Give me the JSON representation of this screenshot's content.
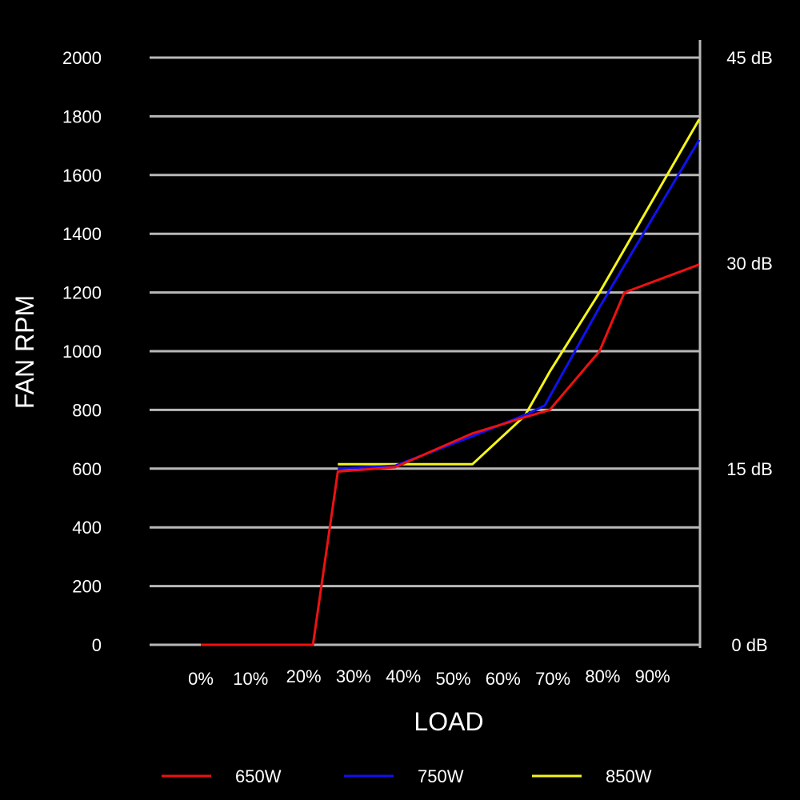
{
  "chart_data": {
    "type": "line",
    "title": "",
    "xlabel": "LOAD",
    "ylabel": "FAN RPM",
    "x_tick_labels": [
      "0%",
      "10%",
      "20%",
      "30%",
      "40%",
      "50%",
      "60%",
      "70%",
      "80%",
      "90%"
    ],
    "y_ticks": [
      0,
      200,
      400,
      600,
      800,
      1000,
      1200,
      1400,
      1600,
      1800,
      2000
    ],
    "ylim": [
      0,
      2000
    ],
    "xlim": [
      -10,
      100
    ],
    "secondary_y_labels": [
      {
        "label": "0 dB",
        "rpm": 0
      },
      {
        "label": "15 dB",
        "rpm": 600
      },
      {
        "label": "30 dB",
        "rpm": 1300
      },
      {
        "label": "45 dB",
        "rpm": 2000
      }
    ],
    "grid": "horizontal",
    "legend_position": "bottom",
    "series": [
      {
        "name": "650W",
        "color": "#ee1111",
        "points": [
          [
            0,
            0
          ],
          [
            22.5,
            0
          ],
          [
            27.5,
            590
          ],
          [
            39,
            605
          ],
          [
            54.5,
            720
          ],
          [
            66,
            780
          ],
          [
            70,
            800
          ],
          [
            80,
            1000
          ],
          [
            85,
            1200
          ],
          [
            100,
            1295
          ]
        ]
      },
      {
        "name": "750W",
        "color": "#1111ee",
        "points": [
          [
            27.5,
            600
          ],
          [
            39,
            610
          ],
          [
            54.5,
            710
          ],
          [
            66,
            790
          ],
          [
            69,
            815
          ],
          [
            80,
            1150
          ],
          [
            100,
            1720
          ]
        ]
      },
      {
        "name": "850W",
        "color": "#f5f51a",
        "points": [
          [
            27.5,
            615
          ],
          [
            54.5,
            615
          ],
          [
            65,
            780
          ],
          [
            70,
            930
          ],
          [
            80,
            1200
          ],
          [
            100,
            1790
          ]
        ]
      }
    ]
  }
}
